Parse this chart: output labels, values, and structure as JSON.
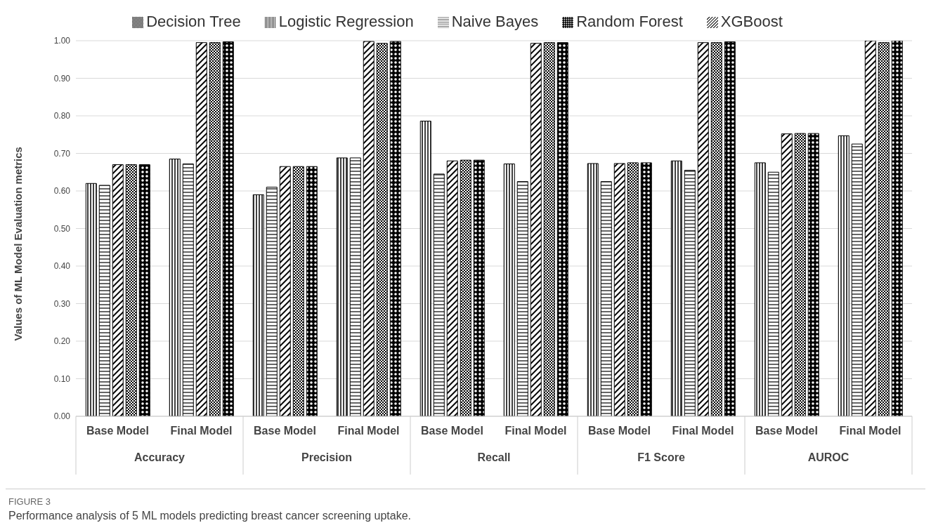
{
  "chart_data": {
    "type": "bar",
    "ylabel": "Values of ML Model Evaluation metrics",
    "categories": [
      "Base Model",
      "Final Model",
      "Base Model",
      "Final Model",
      "Base Model",
      "Final Model",
      "Base Model",
      "Final Model",
      "Base Model",
      "Final Model"
    ],
    "series": [
      {
        "name": "Logistic Regression",
        "color": "#000000",
        "values": [
          0.62,
          0.685,
          0.59,
          0.688,
          0.786,
          0.672,
          0.673,
          0.68,
          0.675,
          0.747
        ]
      },
      {
        "name": "Naive Bayes",
        "color": "#000000",
        "values": [
          0.615,
          0.672,
          0.61,
          0.688,
          0.645,
          0.625,
          0.625,
          0.655,
          0.65,
          0.725
        ]
      },
      {
        "name": "XGBoost",
        "color": "#000000",
        "values": [
          0.67,
          0.995,
          0.665,
          0.998,
          0.68,
          0.993,
          0.673,
          0.995,
          0.752,
          1.0
        ]
      },
      {
        "name": "Decision Tree",
        "color": "#000000",
        "values": [
          0.67,
          0.995,
          0.665,
          0.993,
          0.682,
          0.995,
          0.675,
          0.995,
          0.753,
          0.995
        ]
      },
      {
        "name": "Random Forest",
        "color": "#000000",
        "values": [
          0.67,
          0.997,
          0.665,
          0.998,
          0.682,
          0.995,
          0.675,
          0.997,
          0.753,
          1.0
        ]
      }
    ],
    "ylim": [
      0,
      1
    ],
    "yticks": [
      {
        "value": 0,
        "label": "0.00"
      },
      {
        "value": 0.1,
        "label": "0.10"
      },
      {
        "value": 0.2,
        "label": "0.20"
      },
      {
        "value": 0.3,
        "label": "0.30"
      },
      {
        "value": 0.4,
        "label": "0.40"
      },
      {
        "value": 0.5,
        "label": "0.50"
      },
      {
        "value": 0.6,
        "label": "0.60"
      },
      {
        "value": 0.7,
        "label": "0.70"
      },
      {
        "value": 0.8,
        "label": "0.80"
      },
      {
        "value": 0.9,
        "label": "0.90"
      },
      {
        "value": 1,
        "label": "1.00"
      }
    ],
    "grid": "y",
    "legend": "top",
    "annotations": [
      "Accuracy",
      "Precision",
      "Recall",
      "F1 Score",
      "AUROC",
      "FIGURE 3",
      "Performance analysis of 5 ML models predicting breast cancer screening uptake."
    ]
  }
}
